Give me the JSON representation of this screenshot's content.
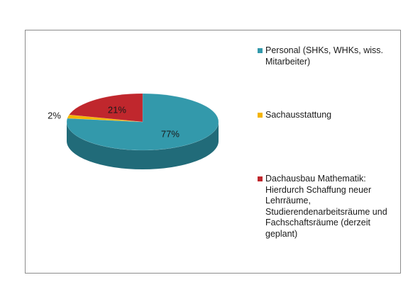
{
  "chart_data": {
    "type": "pie",
    "style": "3d",
    "slices": [
      {
        "label": "Personal (SHKs, WHKs, wiss. Mitarbeiter)",
        "value": 77,
        "display": "77%",
        "color": "#3399ab",
        "side_color": "#216b79"
      },
      {
        "label": "Sachausstattung",
        "value": 2,
        "display": "2%",
        "color": "#f4b400",
        "side_color": "#b38300"
      },
      {
        "label": "Dachausbau Mathematik: Hierdurch Schaffung neuer Lehrräume, Studierendenarbeitsräume und Fachschaftsräume (derzeit geplant)",
        "value": 21,
        "display": "21%",
        "color": "#c0272d",
        "side_color": "#7f1a1e"
      }
    ],
    "legend_position": "right",
    "legend": [
      {
        "text": "Personal (SHKs, WHKs, wiss. Mitarbeiter)",
        "color": "#3399ab"
      },
      {
        "text": "Sachausstattung",
        "color": "#f4b400"
      },
      {
        "text": "Dachausbau Mathematik: Hierdurch Schaffung neuer Lehrräume, Studierendenarbeitsräume und Fachschaftsräume (derzeit geplant)",
        "color": "#c0272d"
      }
    ]
  }
}
